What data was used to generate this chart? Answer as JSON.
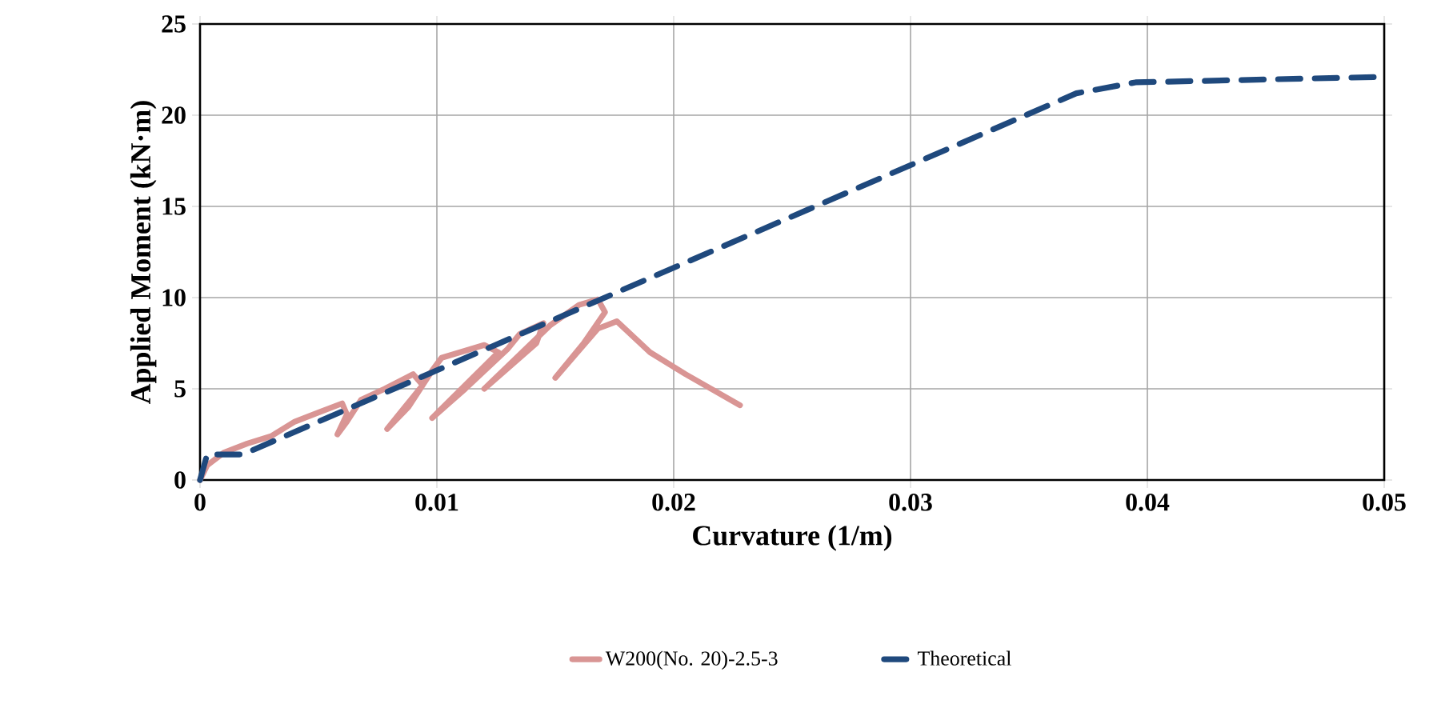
{
  "chart_data": {
    "type": "line",
    "xlabel": "Curvature (1/m)",
    "ylabel": "Applied Moment (kN·m)",
    "xlim": [
      0,
      0.05
    ],
    "ylim": [
      0,
      25
    ],
    "xticks": [
      0,
      0.01,
      0.02,
      0.03,
      0.04,
      0.05
    ],
    "yticks": [
      0,
      5,
      10,
      15,
      20,
      25
    ],
    "grid": true,
    "legend": "bottom",
    "series": [
      {
        "name": "W200(No. 20)-2.5-3",
        "color": "#d99594",
        "line_style": "solid",
        "x": [
          0,
          0.0003,
          0.001,
          0.002,
          0.003,
          0.004,
          0.005,
          0.006,
          0.0062,
          0.0058,
          0.0062,
          0.0068,
          0.0078,
          0.009,
          0.0094,
          0.0079,
          0.0088,
          0.0098,
          0.0102,
          0.012,
          0.0126,
          0.0098,
          0.0112,
          0.013,
          0.0135,
          0.0145,
          0.0142,
          0.012,
          0.0132,
          0.0148,
          0.016,
          0.0168,
          0.0171,
          0.0162,
          0.015,
          0.0158,
          0.0168,
          0.0176,
          0.019,
          0.0205,
          0.0228
        ],
        "values": [
          0,
          0.8,
          1.5,
          2.0,
          2.4,
          3.2,
          3.7,
          4.2,
          3.6,
          2.5,
          3.2,
          4.4,
          5.0,
          5.8,
          5.2,
          2.8,
          4.0,
          6.0,
          6.7,
          7.4,
          7.0,
          3.4,
          5.0,
          7.2,
          8.0,
          8.6,
          7.5,
          5.0,
          6.5,
          8.5,
          9.6,
          9.9,
          9.2,
          7.5,
          5.6,
          6.8,
          8.3,
          8.7,
          7.0,
          5.8,
          4.1
        ]
      },
      {
        "name": "Theoretical",
        "color": "#1f497d",
        "line_style": "dashed",
        "x": [
          0,
          0.0003,
          0.0018,
          0.037,
          0.0395,
          0.05
        ],
        "values": [
          0,
          1.4,
          1.4,
          21.2,
          21.8,
          22.1
        ]
      }
    ]
  }
}
